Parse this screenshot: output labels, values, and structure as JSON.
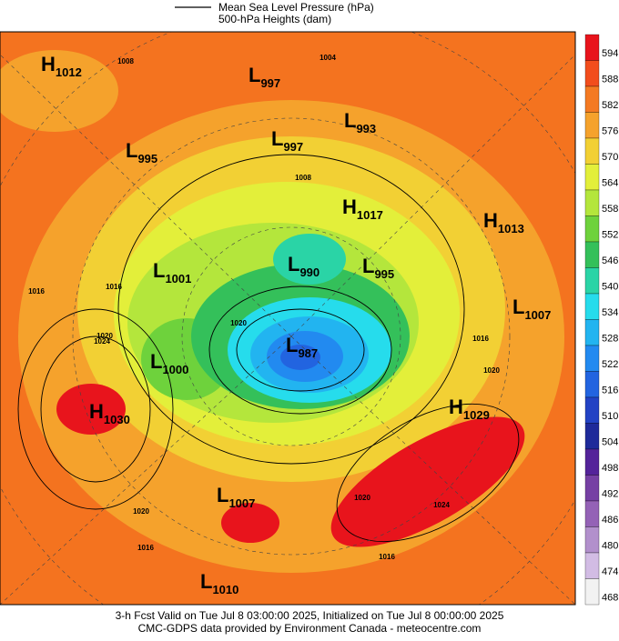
{
  "header": {
    "legend_line": "Mean Sea Level Pressure (hPa)",
    "legend_fill": "500-hPa Heights (dam)"
  },
  "systems": [
    {
      "type": "H",
      "value": "1012"
    },
    {
      "type": "L",
      "value": "997"
    },
    {
      "type": "L",
      "value": "993"
    },
    {
      "type": "L",
      "value": "997"
    },
    {
      "type": "L",
      "value": "995"
    },
    {
      "type": "H",
      "value": "1017"
    },
    {
      "type": "H",
      "value": "1013"
    },
    {
      "type": "L",
      "value": "1001"
    },
    {
      "type": "L",
      "value": "990"
    },
    {
      "type": "L",
      "value": "995"
    },
    {
      "type": "L",
      "value": "1007"
    },
    {
      "type": "L",
      "value": "987"
    },
    {
      "type": "L",
      "value": "1000"
    },
    {
      "type": "H",
      "value": "1030"
    },
    {
      "type": "H",
      "value": "1029"
    },
    {
      "type": "L",
      "value": "1007"
    },
    {
      "type": "L",
      "value": "1010"
    }
  ],
  "contour_labels": [
    "1008",
    "1004",
    "1008",
    "1016",
    "1016",
    "1024",
    "1020",
    "1020",
    "1016",
    "1020",
    "1016",
    "1024",
    "1020",
    "1016",
    "1020"
  ],
  "colorbar": [
    {
      "label": "594",
      "color": "#e8141c"
    },
    {
      "label": "588",
      "color": "#f24d1c"
    },
    {
      "label": "582",
      "color": "#f47a22"
    },
    {
      "label": "576",
      "color": "#f5a22c"
    },
    {
      "label": "570",
      "color": "#f2d034"
    },
    {
      "label": "564",
      "color": "#e3ef3a"
    },
    {
      "label": "558",
      "color": "#b4e63c"
    },
    {
      "label": "552",
      "color": "#6ed23c"
    },
    {
      "label": "546",
      "color": "#34c05a"
    },
    {
      "label": "540",
      "color": "#2ad4a6"
    },
    {
      "label": "534",
      "color": "#26dcec"
    },
    {
      "label": "528",
      "color": "#22b4f0"
    },
    {
      "label": "522",
      "color": "#228af0"
    },
    {
      "label": "516",
      "color": "#2264e0"
    },
    {
      "label": "510",
      "color": "#2242c4"
    },
    {
      "label": "504",
      "color": "#1e2a9a"
    },
    {
      "label": "498",
      "color": "#54239a"
    },
    {
      "label": "492",
      "color": "#7640a4"
    },
    {
      "label": "486",
      "color": "#9462b6"
    },
    {
      "label": "480",
      "color": "#b290cc"
    },
    {
      "label": "474",
      "color": "#d2bce4"
    },
    {
      "label": "468",
      "color": "#f2f2f2"
    }
  ],
  "footer": {
    "line1": "3-h Fcst Valid on Tue Jul  8 03:00:00 2025, Initialized on Tue Jul  8 00:00:00 2025",
    "line2": "CMC-GDPS data provided by Environment Canada - meteocentre.com"
  }
}
